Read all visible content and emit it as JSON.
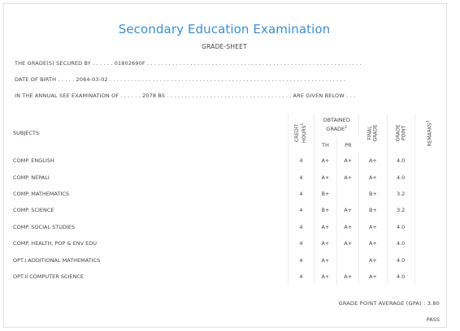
{
  "header": {
    "title": "Secondary Education Examination",
    "subtitle": "GRADE-SHEET"
  },
  "info": {
    "grades_secured": "THE GRADE(S) SECURED BY . . . . . . 01802690F . . . . . . . . . . . . . . . . . . . . . . . . . . . . . . . . . . . . . . . . . . . . . . . . . . . . . . . . . . . .",
    "dob": "DATE OF BIRTH . . . . . 2064-03-02 . . . . . . . . . . . . . . . . . . . . . . . . . . . . . . . . . . . . . . . . . . . . . . . . . . . . . . . . . . . . . . . . . .",
    "exam": "IN THE ANNUAL SEE EXAMINATION OF . . . . . . 2078 BS . . . . . . . . . . . . . . . . . . . . . . . . . . . . . . . . . . . ARE GIVEN BELOW . . ."
  },
  "table": {
    "headers": {
      "subjects": "SUBJECTS",
      "credit": "CREDIT",
      "credit_sub": "HOURS",
      "credit_sup": "1",
      "obtained": "OBTAINED",
      "grade": "GRADE",
      "grade_sup": "2",
      "th": "TH",
      "pr": "PR",
      "final": "FINAL",
      "final_sub": "GRADE",
      "grade_point": "GRADE",
      "grade_point_sub": "POINT",
      "remarks": "REMARKS",
      "remarks_sup": "3"
    },
    "rows": [
      {
        "subject": "COMP. ENGLISH",
        "credit": "4",
        "th": "A+",
        "pr": "A+",
        "final": "A+",
        "gp": "4.0",
        "remarks": ""
      },
      {
        "subject": "COMP. NEPALI",
        "credit": "4",
        "th": "A+",
        "pr": "A+",
        "final": "A+",
        "gp": "4.0",
        "remarks": ""
      },
      {
        "subject": "COMP. MATHEMATICS",
        "credit": "4",
        "th": "B+",
        "pr": "",
        "final": "B+",
        "gp": "3.2",
        "remarks": ""
      },
      {
        "subject": "COMP. SCIENCE",
        "credit": "4",
        "th": "B+",
        "pr": "A+",
        "final": "B+",
        "gp": "3.2",
        "remarks": ""
      },
      {
        "subject": "COMP. SOCIAL STUDIES",
        "credit": "4",
        "th": "A+",
        "pr": "A+",
        "final": "A+",
        "gp": "4.0",
        "remarks": ""
      },
      {
        "subject": "COMP. HEALTH, POP & ENV EDU",
        "credit": "4",
        "th": "A+",
        "pr": "A+",
        "final": "A+",
        "gp": "4.0",
        "remarks": ""
      },
      {
        "subject": "OPT.I ADDITIONAL MATHEMATICS",
        "credit": "4",
        "th": "A+",
        "pr": "",
        "final": "A+",
        "gp": "4.0",
        "remarks": ""
      },
      {
        "subject": "OPT.II COMPUTER SCIENCE",
        "credit": "4",
        "th": "A+",
        "pr": "A+",
        "final": "A+",
        "gp": "4.0",
        "remarks": ""
      }
    ]
  },
  "footer": {
    "gpa": "GRADE POINT AVERAGE (GPA) : 3.80",
    "result": "PASS"
  }
}
